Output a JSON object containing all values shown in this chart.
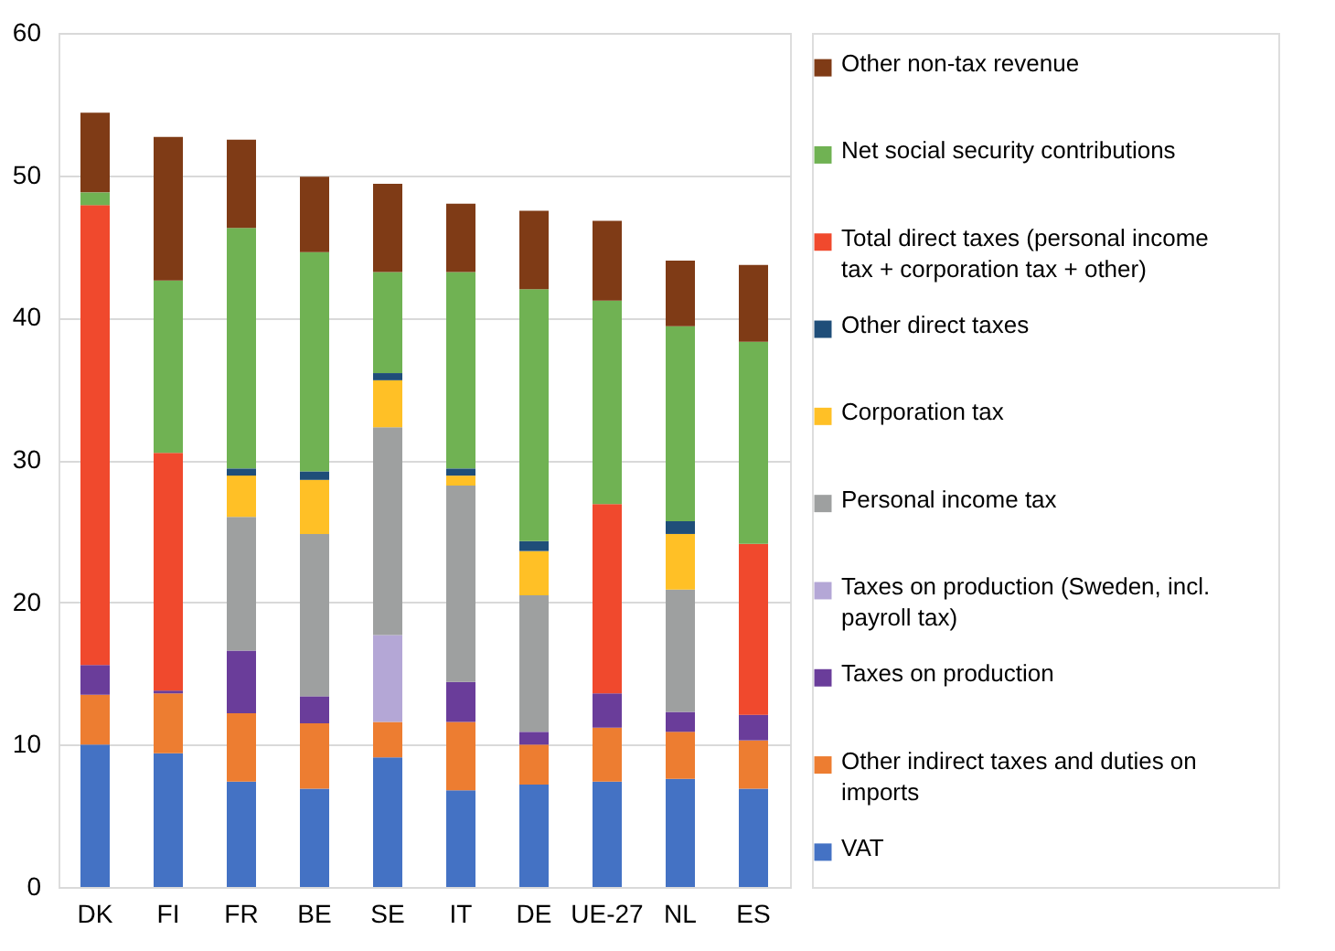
{
  "chart_data": {
    "type": "bar",
    "stacked": true,
    "legend": "right",
    "grid": "y",
    "categories": [
      "DK",
      "FI",
      "FR",
      "BE",
      "SE",
      "IT",
      "DE",
      "UE-27",
      "NL",
      "ES"
    ],
    "ylim": [
      0,
      60
    ],
    "yticks": [
      0,
      10,
      20,
      30,
      40,
      50,
      60
    ],
    "series": [
      {
        "name": "VAT",
        "color": "#4472c4",
        "values": [
          10.0,
          9.4,
          7.4,
          6.9,
          9.1,
          6.8,
          7.2,
          7.4,
          7.6,
          6.9
        ]
      },
      {
        "name": "Other indirect taxes and duties on imports",
        "color": "#ed7d31",
        "values": [
          3.5,
          4.2,
          4.8,
          4.6,
          2.5,
          4.8,
          2.8,
          3.8,
          3.3,
          3.4
        ]
      },
      {
        "name": "Taxes on production",
        "color": "#6a3d9a",
        "values": [
          2.1,
          0.2,
          4.4,
          1.9,
          null,
          2.8,
          0.9,
          2.4,
          1.4,
          1.8
        ]
      },
      {
        "name": "Taxes on production (Sweden, incl. payroll tax)",
        "color": "#b4a7d6",
        "values": [
          null,
          null,
          null,
          null,
          6.1,
          null,
          null,
          null,
          null,
          null
        ]
      },
      {
        "name": "Personal income tax",
        "color": "#9ea0a0",
        "values": [
          null,
          null,
          9.4,
          11.4,
          14.6,
          13.8,
          9.6,
          null,
          8.6,
          null
        ]
      },
      {
        "name": "Corporation tax",
        "color": "#ffc026",
        "values": [
          null,
          null,
          2.9,
          3.8,
          3.3,
          0.7,
          3.1,
          null,
          3.9,
          null
        ]
      },
      {
        "name": "Other direct taxes",
        "color": "#1f4e79",
        "values": [
          null,
          null,
          0.5,
          0.6,
          0.5,
          0.5,
          0.7,
          null,
          0.9,
          null
        ]
      },
      {
        "name": "Total direct taxes (personal income tax + corporation tax + other)",
        "color": "#f0492d",
        "values": [
          32.3,
          16.7,
          null,
          null,
          null,
          null,
          null,
          13.3,
          null,
          12.0
        ]
      },
      {
        "name": "Net social security contributions",
        "color": "#70b253",
        "values": [
          0.9,
          12.1,
          16.9,
          15.4,
          7.1,
          13.8,
          17.7,
          14.3,
          13.7,
          14.2
        ]
      },
      {
        "name": "Other non-tax revenue",
        "color": "#7f3b16",
        "values": [
          5.6,
          10.1,
          6.2,
          5.3,
          6.2,
          4.8,
          5.5,
          5.6,
          4.6,
          5.4
        ]
      }
    ]
  }
}
